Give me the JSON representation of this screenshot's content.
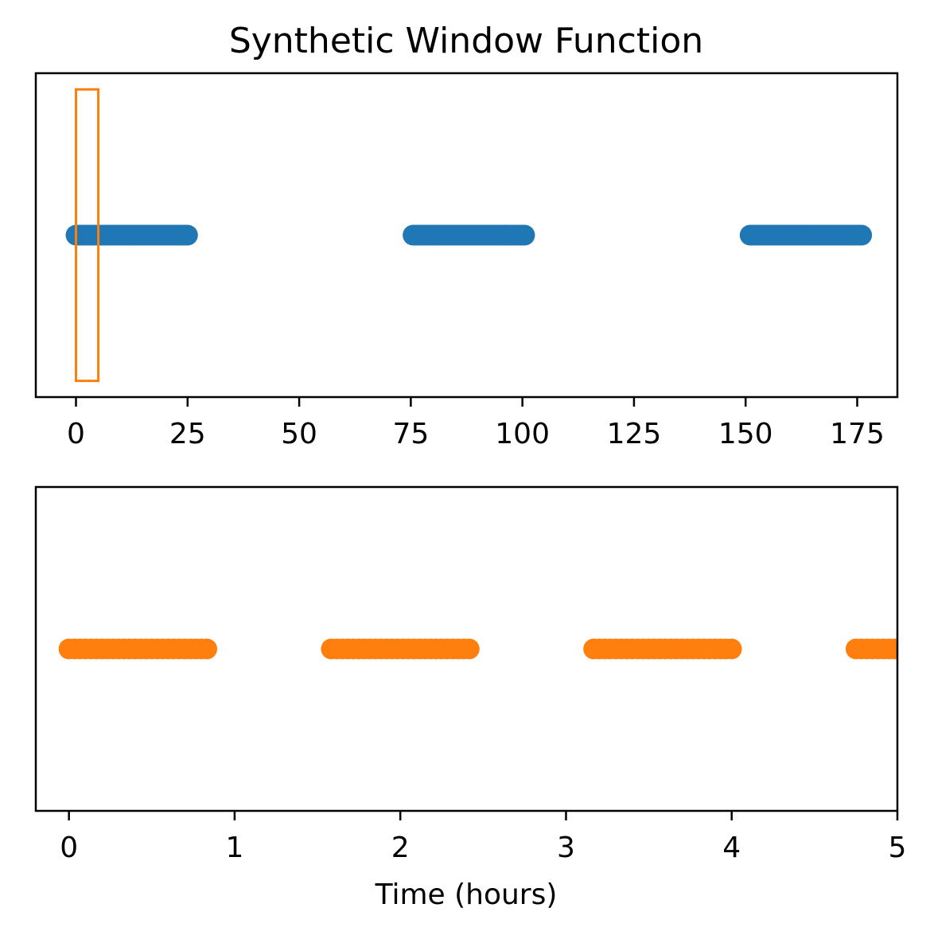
{
  "title": "Synthetic Window Function",
  "chart_data": [
    {
      "type": "scatter",
      "title": "Synthetic Window Function",
      "xlabel": "",
      "ylabel": "",
      "xlim": [
        -9,
        184
      ],
      "ylim": [
        -1,
        1
      ],
      "x_ticks": [
        0,
        25,
        50,
        75,
        100,
        125,
        150,
        175
      ],
      "x_tick_labels": [
        "0",
        "25",
        "50",
        "75",
        "100",
        "125",
        "150",
        "175"
      ],
      "y_ticks_visible": false,
      "grid": false,
      "series": [
        {
          "color": "#1f77b4",
          "marker": "circle",
          "y": 0,
          "segments": [
            {
              "x_start": 0,
              "x_end": 25,
              "step": 0.5
            },
            {
              "x_start": 75.5,
              "x_end": 100.5,
              "step": 0.5
            },
            {
              "x_start": 151,
              "x_end": 176,
              "step": 0.5
            }
          ]
        }
      ],
      "highlight_rect": {
        "color": "#ff7f0e",
        "x_range": [
          0,
          5
        ],
        "y_range": [
          -0.9,
          0.9
        ]
      }
    },
    {
      "type": "scatter",
      "title": "",
      "xlabel": "Time (hours)",
      "ylabel": "",
      "xlim": [
        -0.2,
        5
      ],
      "ylim": [
        -1,
        1
      ],
      "x_ticks": [
        0,
        1,
        2,
        3,
        4,
        5
      ],
      "x_tick_labels": [
        "0",
        "1",
        "2",
        "3",
        "4",
        "5"
      ],
      "y_ticks_visible": false,
      "grid": false,
      "series": [
        {
          "color": "#ff7f0e",
          "marker": "circle",
          "y": 0,
          "segments": [
            {
              "x_start": 0,
              "x_end": 0.8333,
              "step": 0.0333
            },
            {
              "x_start": 1.5833,
              "x_end": 2.4167,
              "step": 0.0333
            },
            {
              "x_start": 3.1667,
              "x_end": 4.0,
              "step": 0.0333
            },
            {
              "x_start": 4.75,
              "x_end": 5.0,
              "step": 0.0333
            }
          ]
        }
      ]
    }
  ]
}
